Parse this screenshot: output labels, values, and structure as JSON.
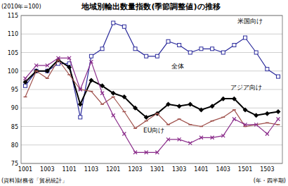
{
  "chart_data": {
    "type": "line",
    "title": "地域別輸出数量指数(季節調整値)の推移",
    "y_label": "(2010年=100)",
    "x_label": "(年・四半期)",
    "source": "(資料)財務省「貿易統計」",
    "categories": [
      "1001",
      null,
      "1003",
      null,
      "1101",
      null,
      "1103",
      null,
      "1201",
      null,
      "1203",
      null,
      "1301",
      null,
      "1303",
      null,
      "1401",
      null,
      "1403",
      null,
      "1501",
      null,
      "1503",
      null
    ],
    "ylim": [
      75,
      115
    ],
    "yticks": [
      75,
      80,
      85,
      90,
      95,
      100,
      105,
      110,
      115
    ],
    "grid": true,
    "series": [
      {
        "name": "米国向け",
        "color": "#2b2b9c",
        "marker": "square",
        "values": [
          96,
          100,
          100,
          102,
          102,
          87.5,
          104,
          106,
          113,
          112,
          106,
          104,
          104,
          108,
          107,
          105,
          106,
          106,
          105,
          107,
          109,
          105,
          100.5,
          98.5
        ]
      },
      {
        "name": "全体",
        "color": "#000000",
        "marker": "diamond",
        "values": [
          97,
          100,
          100,
          103,
          101,
          91,
          97.5,
          96,
          94,
          93,
          90,
          87.5,
          88.5,
          91,
          90.5,
          91,
          89.5,
          90.5,
          92.5,
          92.5,
          89.5,
          88,
          88.5,
          89
        ]
      },
      {
        "name": "アジア向け",
        "color": "#a0524d",
        "marker": "dash",
        "values": [
          93,
          100,
          98,
          103,
          99,
          95,
          94.5,
          91,
          93,
          89,
          84.5,
          86.5,
          88.5,
          85.5,
          87,
          85.5,
          85,
          86.5,
          87.5,
          89.5,
          85,
          85.5,
          86,
          85.5
        ]
      },
      {
        "name": "EU向け",
        "color": "#8b2d8b",
        "marker": "x",
        "values": [
          98,
          101.5,
          101.5,
          103.5,
          103.5,
          95,
          102.5,
          94,
          88,
          83,
          78,
          78,
          78,
          81.5,
          81.5,
          80.5,
          82,
          82,
          82.5,
          87,
          85.5,
          85.5,
          83,
          87
        ]
      }
    ]
  }
}
